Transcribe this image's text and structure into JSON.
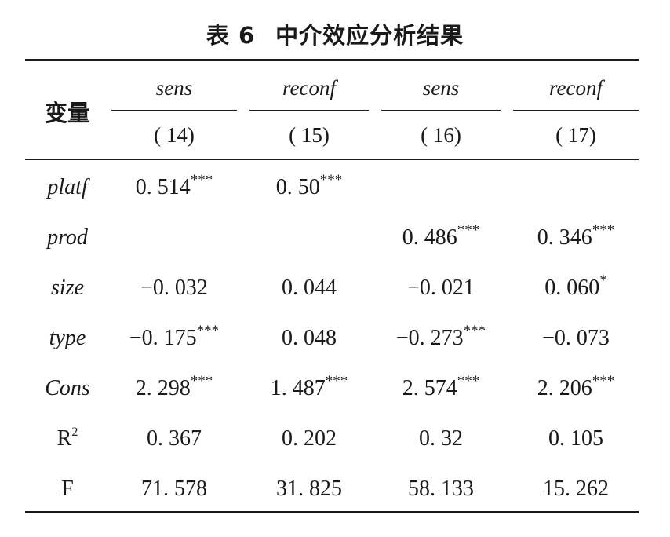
{
  "caption": {
    "number": "表 6",
    "title": "中介效应分析结果"
  },
  "table": {
    "stub_header": "变量",
    "columns": [
      {
        "dep": "sens",
        "num": "( 14)"
      },
      {
        "dep": "reconf",
        "num": "( 15)"
      },
      {
        "dep": "sens",
        "num": "( 16)"
      },
      {
        "dep": "reconf",
        "num": "( 17)"
      }
    ],
    "rows": [
      {
        "label": "platf",
        "cells": [
          {
            "v": "0. 514",
            "s": "***"
          },
          {
            "v": "0. 50",
            "s": "***"
          },
          {
            "v": "",
            "s": ""
          },
          {
            "v": "",
            "s": ""
          }
        ]
      },
      {
        "label": "prod",
        "cells": [
          {
            "v": "",
            "s": ""
          },
          {
            "v": "",
            "s": ""
          },
          {
            "v": "0. 486",
            "s": "***"
          },
          {
            "v": "0. 346",
            "s": "***"
          }
        ]
      },
      {
        "label": "size",
        "cells": [
          {
            "v": "−0. 032",
            "s": ""
          },
          {
            "v": "0. 044",
            "s": ""
          },
          {
            "v": "−0. 021",
            "s": ""
          },
          {
            "v": "0. 060",
            "s": "*"
          }
        ]
      },
      {
        "label": "type",
        "cells": [
          {
            "v": "−0. 175",
            "s": "***"
          },
          {
            "v": "0. 048",
            "s": ""
          },
          {
            "v": "−0. 273",
            "s": "***"
          },
          {
            "v": "−0. 073",
            "s": ""
          }
        ]
      },
      {
        "label": "Cons",
        "cells": [
          {
            "v": "2. 298",
            "s": "***"
          },
          {
            "v": "1. 487",
            "s": "***"
          },
          {
            "v": "2. 574",
            "s": "***"
          },
          {
            "v": "2. 206",
            "s": "***"
          }
        ]
      },
      {
        "label": "R",
        "label_sup": "2",
        "cells": [
          {
            "v": "0. 367",
            "s": ""
          },
          {
            "v": "0. 202",
            "s": ""
          },
          {
            "v": "0. 32",
            "s": ""
          },
          {
            "v": "0. 105",
            "s": ""
          }
        ]
      },
      {
        "label": "F",
        "cells": [
          {
            "v": "71. 578",
            "s": ""
          },
          {
            "v": "31. 825",
            "s": ""
          },
          {
            "v": "58. 133",
            "s": ""
          },
          {
            "v": "15. 262",
            "s": ""
          }
        ]
      }
    ]
  }
}
